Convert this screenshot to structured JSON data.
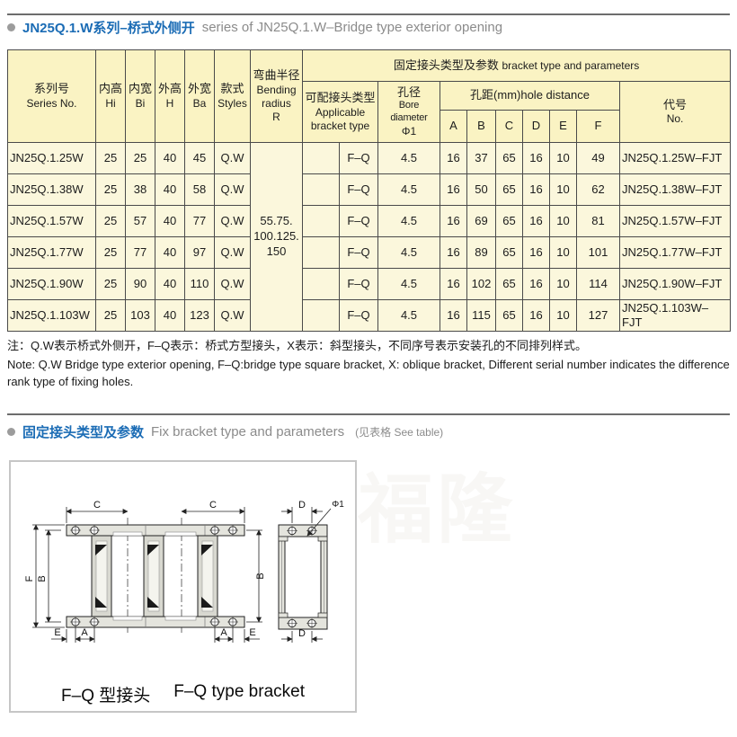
{
  "colors": {
    "accent_blue": "#1b6cb5",
    "header_yellow": "#faf3c3",
    "cell_yellow": "#fbf7dc",
    "border_gray": "#4a4a4a"
  },
  "section1": {
    "title_zh": "JN25Q.1.W系列–桥式外侧开",
    "title_en": "series of JN25Q.1.W–Bridge type exterior opening"
  },
  "table": {
    "headers": {
      "series_zh": "系列号",
      "series_en": "Series No.",
      "hi_zh": "内高",
      "hi_en": "Hi",
      "bi_zh": "内宽",
      "bi_en": "Bi",
      "h_zh": "外高",
      "h_en": "H",
      "ba_zh": "外宽",
      "ba_en": "Ba",
      "styles_zh": "款式",
      "styles_en": "Styles",
      "bending_zh": "弯曲半径",
      "bending_en": "Bending radius",
      "bending_sym": "R",
      "group_zh": "固定接头类型及参数",
      "group_en": "bracket type and parameters",
      "applicable_zh": "可配接头类型",
      "applicable_en": "Applicable bracket type",
      "bore_zh": "孔径",
      "bore_en": "Bore diameter",
      "bore_sym": "Φ1",
      "hole": "孔距(mm)hole distance",
      "hole_cols": [
        "A",
        "B",
        "C",
        "D",
        "E",
        "F"
      ],
      "code_zh": "代号",
      "code_en": "No."
    },
    "bending_radius_lines": [
      "55.75.",
      "100.125.",
      "150"
    ],
    "rows": [
      {
        "series": "JN25Q.1.25W",
        "hi": "25",
        "bi": "25",
        "h": "40",
        "ba": "45",
        "style": "Q.W",
        "bracket": "F–Q",
        "bore": "4.5",
        "a": "16",
        "b": "37",
        "c": "65",
        "d": "16",
        "e": "10",
        "f": "49",
        "code": "JN25Q.1.25W–FJT"
      },
      {
        "series": "JN25Q.1.38W",
        "hi": "25",
        "bi": "38",
        "h": "40",
        "ba": "58",
        "style": "Q.W",
        "bracket": "F–Q",
        "bore": "4.5",
        "a": "16",
        "b": "50",
        "c": "65",
        "d": "16",
        "e": "10",
        "f": "62",
        "code": "JN25Q.1.38W–FJT"
      },
      {
        "series": "JN25Q.1.57W",
        "hi": "25",
        "bi": "57",
        "h": "40",
        "ba": "77",
        "style": "Q.W",
        "bracket": "F–Q",
        "bore": "4.5",
        "a": "16",
        "b": "69",
        "c": "65",
        "d": "16",
        "e": "10",
        "f": "81",
        "code": "JN25Q.1.57W–FJT"
      },
      {
        "series": "JN25Q.1.77W",
        "hi": "25",
        "bi": "77",
        "h": "40",
        "ba": "97",
        "style": "Q.W",
        "bracket": "F–Q",
        "bore": "4.5",
        "a": "16",
        "b": "89",
        "c": "65",
        "d": "16",
        "e": "10",
        "f": "101",
        "code": "JN25Q.1.77W–FJT"
      },
      {
        "series": "JN25Q.1.90W",
        "hi": "25",
        "bi": "90",
        "h": "40",
        "ba": "110",
        "style": "Q.W",
        "bracket": "F–Q",
        "bore": "4.5",
        "a": "16",
        "b": "102",
        "c": "65",
        "d": "16",
        "e": "10",
        "f": "114",
        "code": "JN25Q.1.90W–FJT"
      },
      {
        "series": "JN25Q.1.103W",
        "hi": "25",
        "bi": "103",
        "h": "40",
        "ba": "123",
        "style": "Q.W",
        "bracket": "F–Q",
        "bore": "4.5",
        "a": "16",
        "b": "115",
        "c": "65",
        "d": "16",
        "e": "10",
        "f": "127",
        "code": "JN25Q.1.103W–FJT"
      }
    ]
  },
  "notes": {
    "zh": "注：Q.W表示桥式外侧开，F–Q表示：桥式方型接头，X表示：斜型接头，不同序号表示安装孔的不同排列样式。",
    "en": "Note: Q.W Bridge type exterior opening, F–Q:bridge type square bracket, X: oblique bracket, Different serial number indicates the difference rank type of fixing holes."
  },
  "section2": {
    "title_zh": "固定接头类型及参数",
    "title_en": "Fix bracket type and parameters",
    "note": "(见表格 See table)"
  },
  "drawing": {
    "caption_zh": "F–Q 型接头",
    "caption_en": "F–Q type bracket",
    "labels": {
      "c": "C",
      "f": "F",
      "b": "B",
      "a": "A",
      "e": "E",
      "d": "D",
      "phi": "Φ1"
    }
  },
  "watermark": "福隆"
}
